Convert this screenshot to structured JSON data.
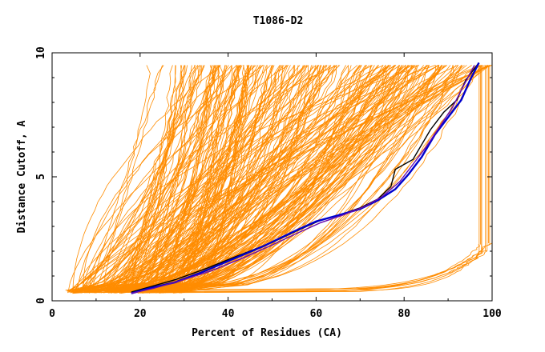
{
  "chart_data": {
    "type": "line",
    "title": "T1086-D2",
    "xlabel": "Percent of Residues (CA)",
    "ylabel": "Distance Cutoff, A",
    "xlim": [
      0,
      100
    ],
    "ylim": [
      0,
      10
    ],
    "x_ticks": [
      0,
      20,
      40,
      60,
      80,
      100
    ],
    "y_ticks": [
      0,
      5,
      10
    ],
    "grid": false,
    "legend": "none",
    "colors": {
      "bundle": "#ff8c00",
      "highlight_dark": "#000000",
      "highlight_blue": "#0000cd",
      "highlight_purple": "#6a0dad"
    },
    "bundle_description_count": 260,
    "bundle": {
      "count": 260,
      "x_start_range": [
        3,
        30
      ],
      "x_end_range": [
        22,
        100
      ],
      "y_range": [
        0.3,
        9.5
      ]
    },
    "series": [
      {
        "color": "#000000",
        "x": [
          18,
          22,
          28,
          35,
          42,
          50,
          56,
          61,
          66,
          70,
          74,
          77,
          78,
          82,
          86,
          89,
          92,
          94,
          97
        ],
        "y": [
          0.35,
          0.55,
          0.85,
          1.3,
          1.8,
          2.35,
          2.85,
          3.25,
          3.5,
          3.75,
          4.1,
          4.6,
          5.3,
          5.7,
          6.9,
          7.6,
          8.1,
          8.9,
          9.6
        ]
      },
      {
        "color": "#0000cd",
        "x": [
          18,
          22,
          28,
          34,
          40,
          48,
          55,
          60,
          65,
          70,
          74,
          78,
          81,
          84,
          87,
          90,
          93,
          95,
          97
        ],
        "y": [
          0.3,
          0.5,
          0.75,
          1.15,
          1.6,
          2.2,
          2.8,
          3.2,
          3.45,
          3.7,
          4.05,
          4.5,
          5.1,
          5.8,
          6.7,
          7.4,
          8.1,
          8.9,
          9.6
        ]
      },
      {
        "color": "#6a0dad",
        "x": [
          18,
          23,
          29,
          36,
          43,
          50,
          56,
          61,
          66,
          71,
          75,
          79,
          82,
          85,
          88,
          91,
          93,
          96
        ],
        "y": [
          0.3,
          0.5,
          0.8,
          1.2,
          1.7,
          2.25,
          2.75,
          3.15,
          3.45,
          3.8,
          4.2,
          4.8,
          5.5,
          6.2,
          7.0,
          7.8,
          8.5,
          9.5
        ]
      }
    ]
  }
}
